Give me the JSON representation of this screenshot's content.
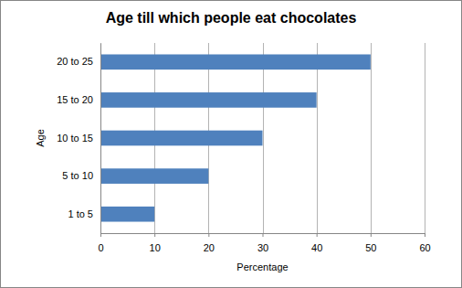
{
  "chart_data": {
    "type": "bar",
    "title": "Age till which people eat chocolates",
    "x_label": "Percentage",
    "y_label": "Age",
    "categories": [
      "1 to 5",
      "5 to 10",
      "10 to 15",
      "15 to 20",
      "20 to 25"
    ],
    "values": [
      10,
      20,
      30,
      40,
      50
    ],
    "color": "#4f81bd",
    "orientation": "horizontal",
    "xlim": [
      0,
      60
    ],
    "xticks": [
      0,
      10,
      20,
      30,
      40,
      50,
      60
    ],
    "grid": true
  }
}
